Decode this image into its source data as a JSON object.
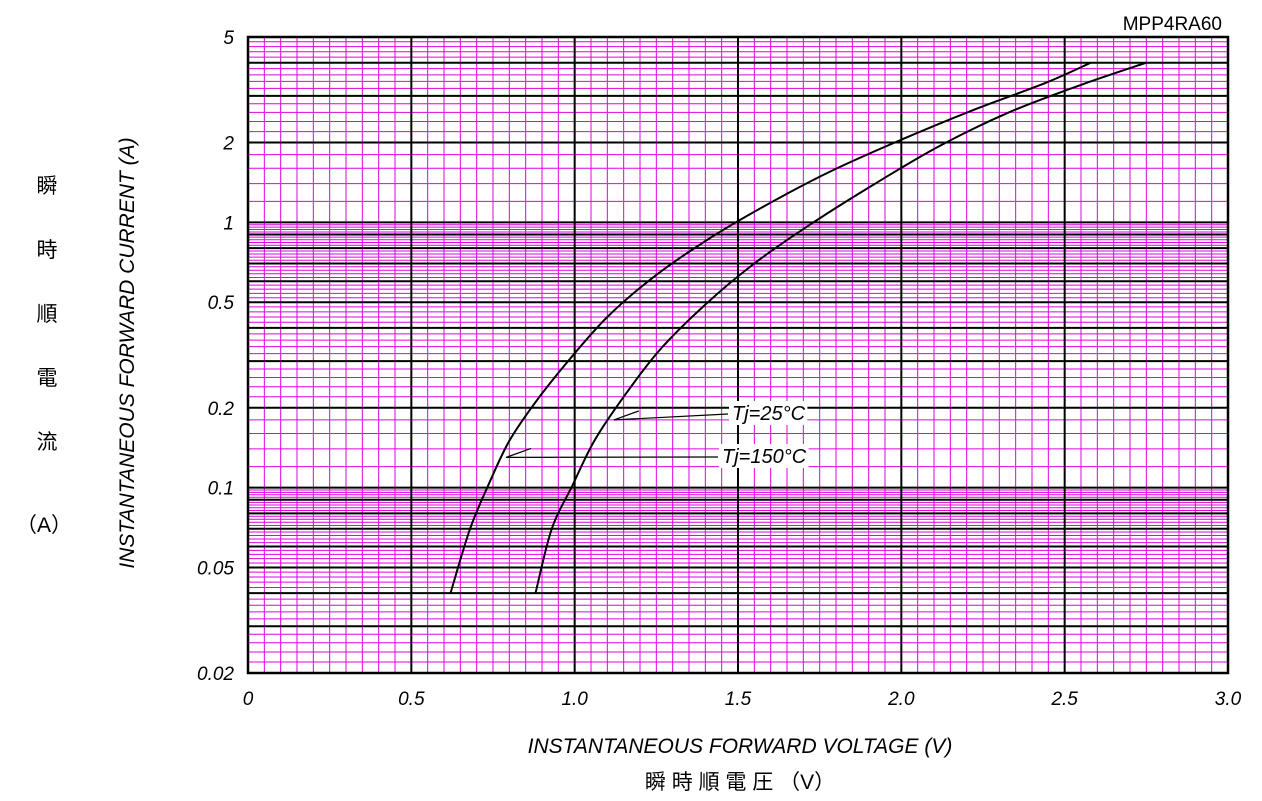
{
  "chart_data": {
    "type": "line",
    "title": "MPP4RA60",
    "xlabel": "INSTANTANEOUS FORWARD VOLTAGE (V)",
    "xlabel_jp": "瞬 時 順 電 圧 （V）",
    "ylabel": "INSTANTANEOUS FORWARD CURRENT (A)",
    "ylabel_jp": [
      "瞬",
      "時",
      "順",
      "電",
      "流"
    ],
    "ylabel_jp_unit": "（A）",
    "xlim": [
      0,
      3.0
    ],
    "ylim": [
      0.02,
      5
    ],
    "yscale": "log",
    "grid": true,
    "grid_color": "#e000e0",
    "x_ticks": [
      {
        "v": 0,
        "label": "0"
      },
      {
        "v": 0.5,
        "label": "0.5"
      },
      {
        "v": 1.0,
        "label": "1.0"
      },
      {
        "v": 1.5,
        "label": "1.5"
      },
      {
        "v": 2.0,
        "label": "2.0"
      },
      {
        "v": 2.5,
        "label": "2.5"
      },
      {
        "v": 3.0,
        "label": "3.0"
      }
    ],
    "y_ticks": [
      {
        "v": 0.02,
        "label": "0.02"
      },
      {
        "v": 0.05,
        "label": "0.05"
      },
      {
        "v": 0.1,
        "label": "0.1"
      },
      {
        "v": 0.2,
        "label": "0.2"
      },
      {
        "v": 0.5,
        "label": "0.5"
      },
      {
        "v": 1,
        "label": "1"
      },
      {
        "v": 2,
        "label": "2"
      },
      {
        "v": 5,
        "label": "5"
      }
    ],
    "series": [
      {
        "name": "Tj=150°C",
        "x": [
          0.62,
          0.68,
          0.74,
          0.8,
          0.88,
          0.98,
          1.1,
          1.24,
          1.4,
          1.58,
          1.78,
          2.0,
          2.22,
          2.44,
          2.58
        ],
        "y": [
          0.04,
          0.07,
          0.105,
          0.15,
          0.21,
          0.3,
          0.44,
          0.62,
          0.85,
          1.15,
          1.55,
          2.05,
          2.65,
          3.35,
          4.0
        ]
      },
      {
        "name": "Tj=25°C",
        "x": [
          0.88,
          0.93,
          0.99,
          1.06,
          1.15,
          1.26,
          1.4,
          1.55,
          1.72,
          1.92,
          2.12,
          2.33,
          2.55,
          2.75
        ],
        "y": [
          0.04,
          0.07,
          0.1,
          0.15,
          0.22,
          0.33,
          0.49,
          0.7,
          0.98,
          1.4,
          1.95,
          2.6,
          3.3,
          4.0
        ]
      }
    ],
    "annotations": [
      {
        "label": "Tj=25°C",
        "series": "Tj=25°C",
        "at_x": 1.12,
        "at_y": 0.18
      },
      {
        "label": "Tj=150°C",
        "series": "Tj=150°C",
        "at_x": 0.79,
        "at_y": 0.13
      }
    ]
  }
}
